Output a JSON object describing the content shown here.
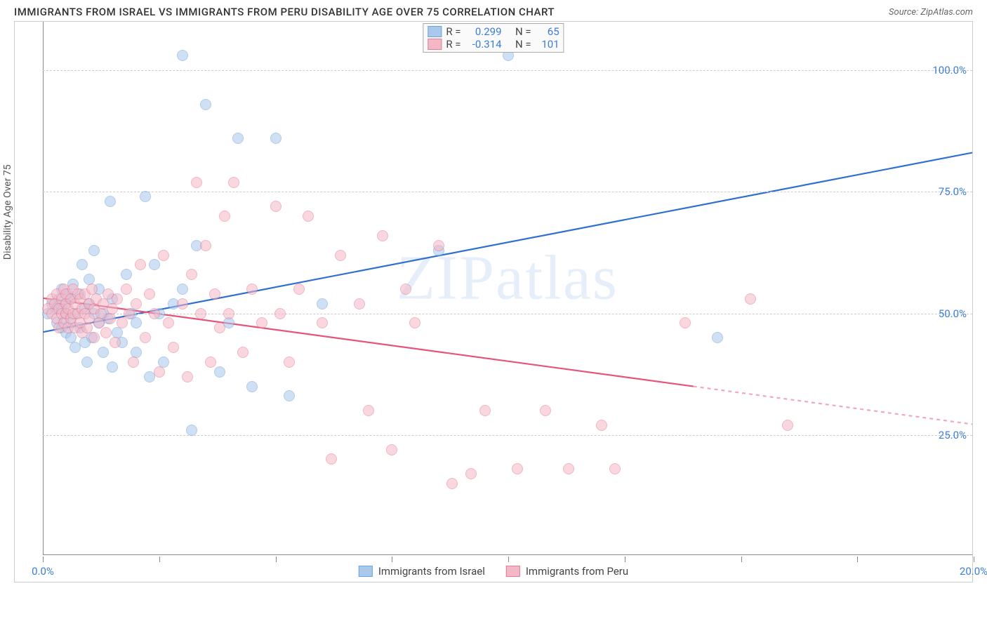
{
  "title": "IMMIGRANTS FROM ISRAEL VS IMMIGRANTS FROM PERU DISABILITY AGE OVER 75 CORRELATION CHART",
  "source": "Source: ZipAtlas.com",
  "y_axis_label": "Disability Age Over 75",
  "watermark": "ZIPatlas",
  "chart": {
    "type": "scatter",
    "xlim": [
      0,
      20
    ],
    "ylim": [
      0,
      110
    ],
    "x_ticks": [
      0,
      2.5,
      5,
      7.5,
      10,
      12.5,
      15,
      17.5,
      20
    ],
    "x_tick_labels": {
      "0": "0.0%",
      "20": "20.0%"
    },
    "y_gridlines": [
      25,
      50,
      75,
      100
    ],
    "y_tick_labels": {
      "25": "25.0%",
      "50": "50.0%",
      "75": "75.0%",
      "100": "100.0%"
    },
    "background_color": "#ffffff",
    "grid_color": "#cccccc",
    "point_radius": 8,
    "series": [
      {
        "name": "Immigrants from Israel",
        "fill": "#a9c8ec",
        "stroke": "#6fa3dd",
        "fill_opacity": 0.55,
        "R": "0.299",
        "N": "65",
        "trend": {
          "x1": 0,
          "y1": 46,
          "x2": 20,
          "y2": 83,
          "color": "#2f6fd0",
          "width": 2.2,
          "dash_from_x": null
        },
        "points": [
          [
            0.1,
            50
          ],
          [
            0.2,
            52
          ],
          [
            0.3,
            48
          ],
          [
            0.3,
            51
          ],
          [
            0.35,
            53
          ],
          [
            0.4,
            47
          ],
          [
            0.4,
            55
          ],
          [
            0.4,
            51
          ],
          [
            0.45,
            49
          ],
          [
            0.5,
            52
          ],
          [
            0.5,
            46
          ],
          [
            0.5,
            50
          ],
          [
            0.55,
            54
          ],
          [
            0.6,
            48
          ],
          [
            0.6,
            53
          ],
          [
            0.6,
            45
          ],
          [
            0.65,
            56
          ],
          [
            0.7,
            50
          ],
          [
            0.7,
            43
          ],
          [
            0.8,
            54
          ],
          [
            0.8,
            47
          ],
          [
            0.85,
            60
          ],
          [
            0.9,
            51
          ],
          [
            0.9,
            44
          ],
          [
            0.95,
            40
          ],
          [
            1.0,
            52
          ],
          [
            1.0,
            57
          ],
          [
            1.05,
            45
          ],
          [
            1.1,
            50
          ],
          [
            1.1,
            63
          ],
          [
            1.2,
            48
          ],
          [
            1.2,
            55
          ],
          [
            1.3,
            42
          ],
          [
            1.3,
            50
          ],
          [
            1.4,
            49
          ],
          [
            1.45,
            73
          ],
          [
            1.5,
            39
          ],
          [
            1.5,
            53
          ],
          [
            1.6,
            46
          ],
          [
            1.7,
            44
          ],
          [
            1.8,
            58
          ],
          [
            1.9,
            50
          ],
          [
            2.0,
            42
          ],
          [
            2.0,
            48
          ],
          [
            2.2,
            74
          ],
          [
            2.3,
            37
          ],
          [
            2.4,
            60
          ],
          [
            2.5,
            50
          ],
          [
            2.6,
            40
          ],
          [
            2.8,
            52
          ],
          [
            3.0,
            103
          ],
          [
            3.0,
            55
          ],
          [
            3.2,
            26
          ],
          [
            3.3,
            64
          ],
          [
            3.5,
            93
          ],
          [
            3.8,
            38
          ],
          [
            4.0,
            48
          ],
          [
            4.2,
            86
          ],
          [
            4.5,
            35
          ],
          [
            5.0,
            86
          ],
          [
            5.3,
            33
          ],
          [
            6.0,
            52
          ],
          [
            8.5,
            63
          ],
          [
            14.5,
            45
          ],
          [
            10.0,
            103
          ]
        ]
      },
      {
        "name": "Immigrants from Peru",
        "fill": "#f4b7c6",
        "stroke": "#e67b96",
        "fill_opacity": 0.55,
        "R": "-0.314",
        "N": "101",
        "trend": {
          "x1": 0,
          "y1": 53,
          "x2": 20,
          "y2": 27,
          "color": "#e5547a",
          "width": 2.2,
          "dash_from_x": 14
        },
        "points": [
          [
            0.1,
            51
          ],
          [
            0.2,
            53
          ],
          [
            0.2,
            50
          ],
          [
            0.25,
            52
          ],
          [
            0.3,
            49
          ],
          [
            0.3,
            54
          ],
          [
            0.35,
            51
          ],
          [
            0.35,
            47
          ],
          [
            0.4,
            53
          ],
          [
            0.4,
            50
          ],
          [
            0.45,
            55
          ],
          [
            0.45,
            48
          ],
          [
            0.5,
            52
          ],
          [
            0.5,
            50
          ],
          [
            0.5,
            54
          ],
          [
            0.55,
            47
          ],
          [
            0.55,
            51
          ],
          [
            0.6,
            53
          ],
          [
            0.6,
            49
          ],
          [
            0.65,
            55
          ],
          [
            0.65,
            50
          ],
          [
            0.7,
            52
          ],
          [
            0.7,
            47
          ],
          [
            0.75,
            54
          ],
          [
            0.75,
            50
          ],
          [
            0.8,
            48
          ],
          [
            0.8,
            53
          ],
          [
            0.85,
            51
          ],
          [
            0.85,
            46
          ],
          [
            0.9,
            50
          ],
          [
            0.9,
            54
          ],
          [
            0.95,
            47
          ],
          [
            1.0,
            52
          ],
          [
            1.0,
            49
          ],
          [
            1.05,
            55
          ],
          [
            1.1,
            51
          ],
          [
            1.1,
            45
          ],
          [
            1.15,
            53
          ],
          [
            1.2,
            48
          ],
          [
            1.25,
            50
          ],
          [
            1.3,
            52
          ],
          [
            1.35,
            46
          ],
          [
            1.4,
            54
          ],
          [
            1.45,
            49
          ],
          [
            1.5,
            51
          ],
          [
            1.55,
            44
          ],
          [
            1.6,
            53
          ],
          [
            1.7,
            48
          ],
          [
            1.8,
            55
          ],
          [
            1.85,
            50
          ],
          [
            1.95,
            40
          ],
          [
            2.0,
            52
          ],
          [
            2.1,
            60
          ],
          [
            2.2,
            45
          ],
          [
            2.3,
            54
          ],
          [
            2.4,
            50
          ],
          [
            2.5,
            38
          ],
          [
            2.6,
            62
          ],
          [
            2.7,
            48
          ],
          [
            2.8,
            43
          ],
          [
            3.0,
            52
          ],
          [
            3.1,
            37
          ],
          [
            3.2,
            58
          ],
          [
            3.3,
            77
          ],
          [
            3.4,
            50
          ],
          [
            3.5,
            64
          ],
          [
            3.6,
            40
          ],
          [
            3.7,
            54
          ],
          [
            3.8,
            47
          ],
          [
            3.9,
            70
          ],
          [
            4.0,
            50
          ],
          [
            4.1,
            77
          ],
          [
            4.3,
            42
          ],
          [
            4.5,
            55
          ],
          [
            4.7,
            48
          ],
          [
            5.0,
            72
          ],
          [
            5.1,
            50
          ],
          [
            5.3,
            40
          ],
          [
            5.5,
            55
          ],
          [
            5.7,
            70
          ],
          [
            6.0,
            48
          ],
          [
            6.2,
            20
          ],
          [
            6.4,
            62
          ],
          [
            6.8,
            52
          ],
          [
            7.0,
            30
          ],
          [
            7.3,
            66
          ],
          [
            7.5,
            22
          ],
          [
            7.8,
            55
          ],
          [
            8.0,
            48
          ],
          [
            8.5,
            64
          ],
          [
            8.8,
            15
          ],
          [
            9.2,
            17
          ],
          [
            9.5,
            30
          ],
          [
            10.2,
            18
          ],
          [
            10.8,
            30
          ],
          [
            11.3,
            18
          ],
          [
            12.0,
            27
          ],
          [
            12.3,
            18
          ],
          [
            13.8,
            48
          ],
          [
            15.2,
            53
          ],
          [
            16.0,
            27
          ]
        ]
      }
    ]
  },
  "legend_top": {
    "rows": [
      {
        "swatch_fill": "#a9c8ec",
        "swatch_stroke": "#6fa3dd",
        "r_label": "R =",
        "r_val": "0.299",
        "n_label": "N =",
        "n_val": "65"
      },
      {
        "swatch_fill": "#f4b7c6",
        "swatch_stroke": "#e67b96",
        "r_label": "R =",
        "r_val": "-0.314",
        "n_label": "N =",
        "n_val": "101"
      }
    ]
  },
  "legend_bottom": [
    {
      "swatch_fill": "#a9c8ec",
      "swatch_stroke": "#6fa3dd",
      "label": "Immigrants from Israel"
    },
    {
      "swatch_fill": "#f4b7c6",
      "swatch_stroke": "#e67b96",
      "label": "Immigrants from Peru"
    }
  ]
}
